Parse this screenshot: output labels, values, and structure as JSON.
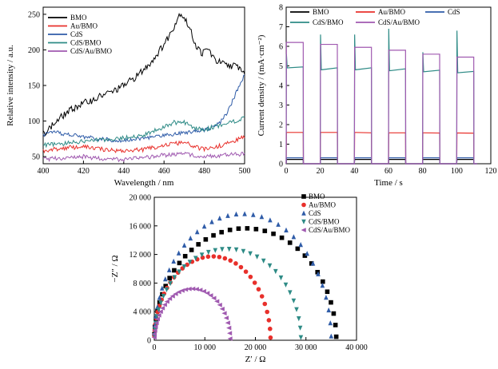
{
  "chart_data": [
    {
      "type": "line",
      "title": "",
      "xlabel": "Wavelength / nm",
      "ylabel": "Relative intensity / a.u.",
      "xlim": [
        400,
        500
      ],
      "ylim": [
        40,
        260
      ],
      "xticks": [
        "400",
        "420",
        "440",
        "460",
        "480",
        "500"
      ],
      "yticks": [
        "50",
        "100",
        "150",
        "200",
        "250"
      ],
      "legend_position": "top-left",
      "series": [
        {
          "name": "BMO",
          "color": "#000000",
          "x": [
            400,
            405,
            410,
            415,
            420,
            425,
            430,
            435,
            440,
            445,
            450,
            455,
            460,
            463,
            466,
            468,
            470,
            473,
            476,
            479,
            482,
            485,
            488,
            491,
            494,
            497,
            500
          ],
          "y": [
            82,
            95,
            108,
            118,
            125,
            130,
            137,
            142,
            150,
            160,
            172,
            188,
            208,
            222,
            240,
            252,
            246,
            228,
            205,
            195,
            202,
            186,
            182,
            178,
            178,
            176,
            168
          ]
        },
        {
          "name": "Au/BMO",
          "color": "#e8302b",
          "x": [
            400,
            410,
            420,
            430,
            440,
            450,
            455,
            460,
            465,
            470,
            475,
            480,
            485,
            490,
            495,
            500
          ],
          "y": [
            58,
            62,
            64,
            60,
            58,
            60,
            63,
            66,
            68,
            70,
            64,
            60,
            63,
            67,
            72,
            78
          ]
        },
        {
          "name": "CdS",
          "color": "#2f5ca8",
          "x": [
            400,
            405,
            410,
            420,
            430,
            440,
            450,
            460,
            470,
            475,
            480,
            485,
            488,
            491,
            494,
            497,
            500
          ],
          "y": [
            80,
            84,
            82,
            78,
            74,
            73,
            76,
            80,
            84,
            86,
            88,
            92,
            98,
            110,
            128,
            148,
            164
          ]
        },
        {
          "name": "CdS/BMO",
          "color": "#2e8b86",
          "x": [
            400,
            410,
            420,
            430,
            440,
            450,
            455,
            460,
            465,
            470,
            475,
            480,
            490,
            500
          ],
          "y": [
            66,
            68,
            72,
            74,
            76,
            80,
            86,
            92,
            98,
            98,
            90,
            88,
            96,
            104
          ]
        },
        {
          "name": "CdS/Au/BMO",
          "color": "#a05ab0",
          "x": [
            400,
            410,
            420,
            430,
            440,
            450,
            460,
            470,
            480,
            490,
            500
          ],
          "y": [
            46,
            48,
            50,
            47,
            46,
            48,
            52,
            54,
            50,
            52,
            54
          ]
        }
      ]
    },
    {
      "type": "line",
      "title": "",
      "xlabel": "Time / s",
      "ylabel": "Current density / (mA·cm⁻²)",
      "xlim": [
        0,
        120
      ],
      "ylim": [
        0,
        8
      ],
      "xticks": [
        "0",
        "20",
        "40",
        "60",
        "80",
        "100",
        "120"
      ],
      "yticks": [
        "0",
        "1",
        "2",
        "3",
        "4",
        "5",
        "6",
        "7",
        "8"
      ],
      "legend_position": "top",
      "light_on_start": [
        0,
        20,
        40,
        60,
        80,
        100
      ],
      "light_off_start": [
        10,
        30,
        50,
        70,
        90,
        110
      ],
      "series": [
        {
          "name": "BMO",
          "color": "#000000",
          "on_start": [
            0.22,
            0.22,
            0.22,
            0.22,
            0.22,
            0.22
          ],
          "on_end": [
            0.22,
            0.22,
            0.22,
            0.22,
            0.22,
            0.22
          ],
          "spike": [
            0.22,
            0.22,
            0.22,
            0.22,
            0.22,
            0.22
          ],
          "off": 0.0
        },
        {
          "name": "Au/BMO",
          "color": "#e8302b",
          "on_start": [
            1.6,
            1.6,
            1.6,
            1.58,
            1.58,
            1.57
          ],
          "on_end": [
            1.6,
            1.6,
            1.58,
            1.58,
            1.57,
            1.56
          ],
          "spike": [
            1.6,
            1.6,
            1.6,
            1.58,
            1.58,
            1.57
          ],
          "off": 0.0
        },
        {
          "name": "CdS",
          "color": "#2f5ca8",
          "on_start": [
            0.3,
            0.3,
            0.3,
            0.3,
            0.3,
            0.3
          ],
          "on_end": [
            0.3,
            0.3,
            0.3,
            0.3,
            0.3,
            0.3
          ],
          "spike": [
            0.3,
            0.3,
            0.3,
            0.3,
            0.3,
            0.3
          ],
          "off": 0.0
        },
        {
          "name": "CdS/BMO",
          "color": "#2e8b86",
          "on_start": [
            4.9,
            4.8,
            4.8,
            4.75,
            4.7,
            4.65
          ],
          "on_end": [
            4.95,
            4.9,
            4.9,
            4.85,
            4.78,
            4.72
          ],
          "spike": [
            5.6,
            6.6,
            6.6,
            6.9,
            5.7,
            6.8
          ],
          "off": 0.0
        },
        {
          "name": "CdS/Au/BMO",
          "color": "#a05ab0",
          "on_start": [
            6.2,
            6.1,
            5.95,
            5.8,
            5.6,
            5.45
          ],
          "on_end": [
            6.2,
            6.1,
            5.95,
            5.8,
            5.6,
            5.45
          ],
          "spike": [
            6.2,
            6.1,
            5.95,
            5.8,
            5.6,
            5.45
          ],
          "off": 0.0
        }
      ]
    },
    {
      "type": "scatter",
      "title": "",
      "xlabel": "Z′ / Ω",
      "ylabel": "−Z″ / Ω",
      "xlim": [
        0,
        40000
      ],
      "ylim": [
        0,
        20000
      ],
      "xticks": [
        "0",
        "10 000",
        "20 000",
        "30 000",
        "40 000"
      ],
      "yticks": [
        "0",
        "4 000",
        "8 000",
        "12 000",
        "16 000",
        "20 000"
      ],
      "legend_position": "top-right",
      "series": [
        {
          "name": "BMO",
          "color": "#000000",
          "marker": "square",
          "center": 18000,
          "r": 18000,
          "ky": 0.87
        },
        {
          "name": "Au/BMO",
          "color": "#e8302b",
          "marker": "circle",
          "center": 11500,
          "r": 11500,
          "ky": 1.02
        },
        {
          "name": "CdS",
          "color": "#2f5ca8",
          "marker": "triangle-up",
          "center": 17500,
          "r": 17500,
          "ky": 1.01
        },
        {
          "name": "CdS/BMO",
          "color": "#2e8b86",
          "marker": "triangle-down",
          "center": 14500,
          "r": 14500,
          "ky": 0.88
        },
        {
          "name": "CdS/Au/BMO",
          "color": "#a05ab0",
          "marker": "triangle-left",
          "center": 7500,
          "r": 7500,
          "ky": 0.96
        }
      ]
    }
  ]
}
